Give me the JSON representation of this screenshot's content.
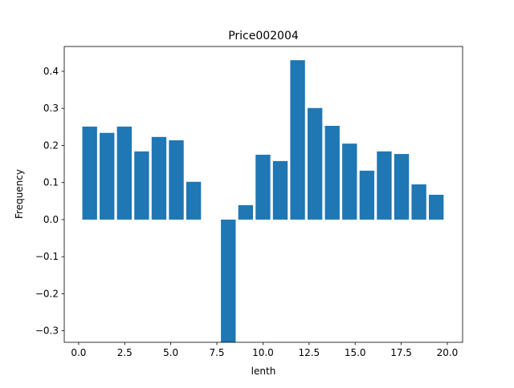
{
  "chart_data": {
    "type": "bar",
    "title": "Price002004",
    "xlabel": "lenth",
    "ylabel": "Frequency",
    "x": [
      0.6,
      1.54,
      2.48,
      3.42,
      4.36,
      5.3,
      6.24,
      7.18,
      8.12,
      9.06,
      10.0,
      10.94,
      11.88,
      12.82,
      13.76,
      14.7,
      15.64,
      16.58,
      17.52,
      18.46,
      19.4
    ],
    "values": [
      0.251,
      0.234,
      0.251,
      0.184,
      0.223,
      0.214,
      0.102,
      0,
      -0.35,
      0.039,
      0.175,
      0.158,
      0.43,
      0.301,
      0.253,
      0.205,
      0.132,
      0.184,
      0.177,
      0.095,
      0.067
    ],
    "bar_width": 0.8,
    "color": "#1f77b4",
    "xlim": [
      -0.78,
      20.83
    ],
    "xticks": [
      {
        "value": 0,
        "label": "0.0"
      },
      2.5,
      {
        "value": 5,
        "label": "5.0"
      },
      7.5,
      {
        "value": 10,
        "label": "10.0"
      },
      12.5,
      {
        "value": 15,
        "label": "15.0"
      },
      17.5,
      {
        "value": 20,
        "label": "20.0"
      }
    ],
    "ylim": [
      -0.331,
      0.467
    ],
    "yticks": [
      {
        "value": -0.3,
        "label": "−0.3"
      },
      {
        "value": -0.2,
        "label": "−0.2"
      },
      {
        "value": -0.1,
        "label": "−0.1"
      },
      {
        "value": 0,
        "label": "0.0"
      },
      0.1,
      0.2,
      0.3,
      0.4
    ]
  }
}
